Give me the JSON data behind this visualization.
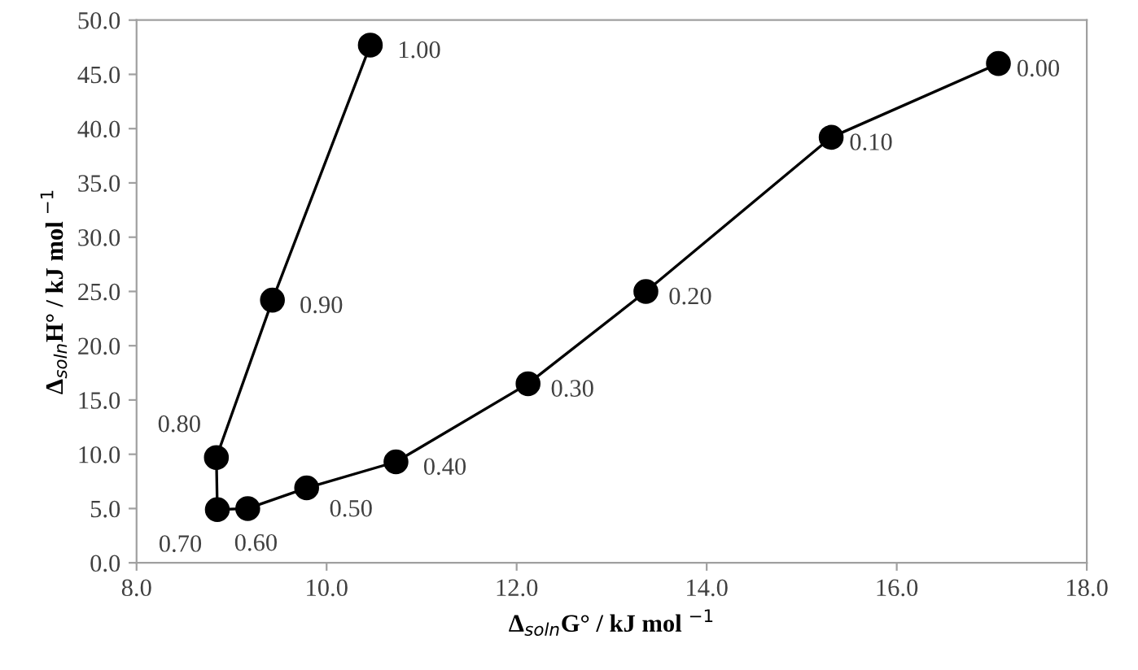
{
  "chart_data": {
    "type": "line",
    "xlabel": "Δ$_{soln}$G° / kJ mol $^{−1}$",
    "ylabel": "Δ$_{soln}$H° / kJ mol $^{−1}$",
    "series": [
      {
        "color": "#000000",
        "x": [
          17.07,
          15.31,
          13.36,
          12.12,
          10.73,
          9.79,
          9.17,
          8.85,
          8.84,
          9.43,
          10.46
        ],
        "values": [
          46.0,
          39.2,
          25.0,
          16.5,
          9.3,
          6.9,
          5.0,
          4.9,
          9.7,
          24.2,
          47.7
        ]
      }
    ],
    "annotations": [
      {
        "text": "0.00",
        "x": 17.07,
        "y": 46.0
      },
      {
        "text": "0.10",
        "x": 15.31,
        "y": 39.2
      },
      {
        "text": "0.20",
        "x": 13.36,
        "y": 25.0
      },
      {
        "text": "0.30",
        "x": 12.12,
        "y": 16.5
      },
      {
        "text": "0.40",
        "x": 10.73,
        "y": 9.3
      },
      {
        "text": "0.50",
        "x": 9.79,
        "y": 6.9
      },
      {
        "text": "0.60",
        "x": 9.17,
        "y": 5.0
      },
      {
        "text": "0.70",
        "x": 8.85,
        "y": 4.9
      },
      {
        "text": "0.80",
        "x": 8.84,
        "y": 9.7
      },
      {
        "text": "0.90",
        "x": 9.43,
        "y": 24.2
      },
      {
        "text": "1.00",
        "x": 10.46,
        "y": 47.7
      }
    ],
    "xlim": [
      8.0,
      18.0
    ],
    "xticks": [
      {
        "value": 8,
        "label": "8.0"
      },
      {
        "value": 10,
        "label": "10.0"
      },
      {
        "value": 12,
        "label": "12.0"
      },
      {
        "value": 14,
        "label": "14.0"
      },
      {
        "value": 16,
        "label": "16.0"
      },
      {
        "value": 18,
        "label": "18.0"
      }
    ],
    "ylim": [
      0.0,
      50.0
    ],
    "yticks": [
      {
        "value": 0,
        "label": "0.0"
      },
      {
        "value": 5,
        "label": "5.0"
      },
      {
        "value": 10,
        "label": "10.0"
      },
      {
        "value": 15,
        "label": "15.0"
      },
      {
        "value": 20,
        "label": "20.0"
      },
      {
        "value": 25,
        "label": "25.0"
      },
      {
        "value": 30,
        "label": "30.0"
      },
      {
        "value": 35,
        "label": "35.0"
      },
      {
        "value": 40,
        "label": "40.0"
      },
      {
        "value": 45,
        "label": "45.0"
      },
      {
        "value": 50,
        "label": "50.0"
      }
    ],
    "marker": "circle",
    "line_style": "solid"
  }
}
